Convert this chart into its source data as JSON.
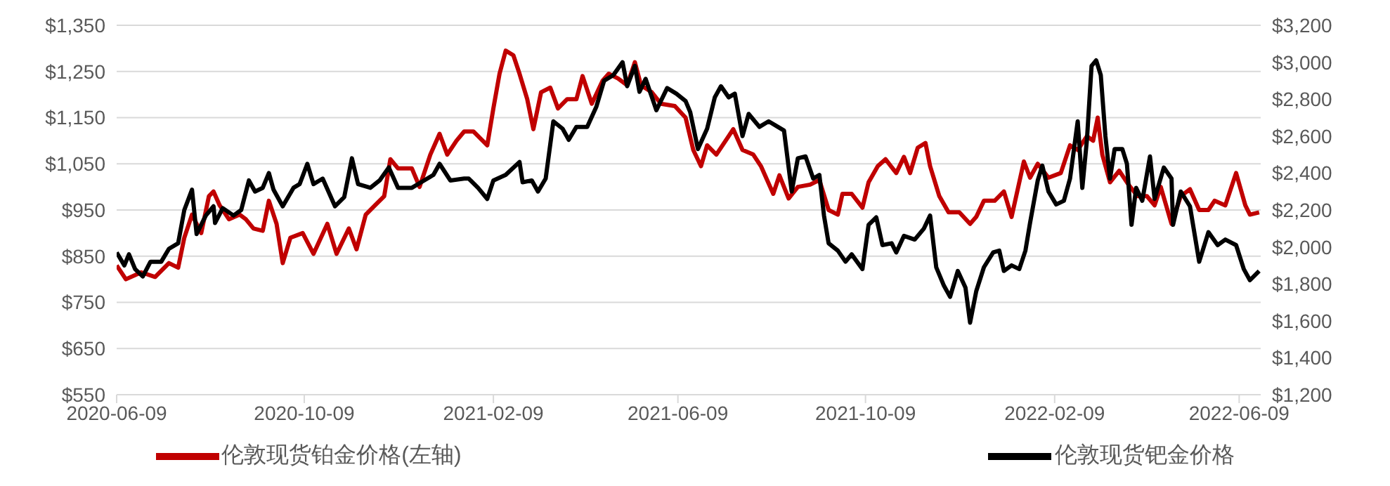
{
  "chart_data": {
    "type": "line",
    "xlim": [
      "2020-06-09",
      "2022-06-23"
    ],
    "xticks": [
      "2020-06-09",
      "2020-10-09",
      "2021-02-09",
      "2021-06-09",
      "2021-10-09",
      "2022-02-09",
      "2022-06-09"
    ],
    "ylim": [
      550,
      1350
    ],
    "yticks": [
      {
        "value": 550,
        "label": "$550"
      },
      {
        "value": 650,
        "label": "$650"
      },
      {
        "value": 750,
        "label": "$750"
      },
      {
        "value": 850,
        "label": "$850"
      },
      {
        "value": 950,
        "label": "$950"
      },
      {
        "value": 1050,
        "label": "$1,050"
      },
      {
        "value": 1150,
        "label": "$1,150"
      },
      {
        "value": 1250,
        "label": "$1,250"
      },
      {
        "value": 1350,
        "label": "$1,350"
      }
    ],
    "y2lim": [
      1200,
      3200
    ],
    "y2ticks": [
      {
        "value": 1200,
        "label": "$1,200"
      },
      {
        "value": 1400,
        "label": "$1,400"
      },
      {
        "value": 1600,
        "label": "$1,600"
      },
      {
        "value": 1800,
        "label": "$1,800"
      },
      {
        "value": 2000,
        "label": "$2,000"
      },
      {
        "value": 2200,
        "label": "$2,200"
      },
      {
        "value": 2400,
        "label": "$2,400"
      },
      {
        "value": 2600,
        "label": "$2,600"
      },
      {
        "value": 2800,
        "label": "$2,800"
      },
      {
        "value": 3000,
        "label": "$3,000"
      },
      {
        "value": 3200,
        "label": "$3,200"
      }
    ],
    "grid": "y",
    "legend": "bottom",
    "marker": "none",
    "line_style": "solid",
    "series": [
      {
        "name": "伦敦现货铂金价格(左轴)",
        "color": "#c00000",
        "x": [
          "2020-06-09",
          "2020-06-15",
          "2020-06-25",
          "2020-07-04",
          "2020-07-13",
          "2020-07-19",
          "2020-07-23",
          "2020-07-28",
          "2020-08-03",
          "2020-08-08",
          "2020-08-11",
          "2020-08-15",
          "2020-08-21",
          "2020-08-28",
          "2020-09-01",
          "2020-09-06",
          "2020-09-12",
          "2020-09-16",
          "2020-09-21",
          "2020-09-25",
          "2020-09-30",
          "2020-10-08",
          "2020-10-15",
          "2020-10-24",
          "2020-10-30",
          "2020-11-07",
          "2020-11-12",
          "2020-11-18",
          "2020-11-24",
          "2020-11-30",
          "2020-12-04",
          "2020-12-09",
          "2020-12-18",
          "2020-12-23",
          "2020-12-30",
          "2021-01-05",
          "2021-01-10",
          "2021-01-16",
          "2021-01-21",
          "2021-01-27",
          "2021-02-05",
          "2021-02-09",
          "2021-02-13",
          "2021-02-17",
          "2021-02-22",
          "2021-02-26",
          "2021-03-03",
          "2021-03-07",
          "2021-03-12",
          "2021-03-18",
          "2021-03-23",
          "2021-03-29",
          "2021-04-04",
          "2021-04-08",
          "2021-04-14",
          "2021-04-21",
          "2021-04-25",
          "2021-05-01",
          "2021-05-07",
          "2021-05-12",
          "2021-05-16",
          "2021-05-23",
          "2021-05-29",
          "2021-06-07",
          "2021-06-14",
          "2021-06-19",
          "2021-06-24",
          "2021-06-28",
          "2021-07-04",
          "2021-07-12",
          "2021-07-15",
          "2021-07-21",
          "2021-07-28",
          "2021-08-02",
          "2021-08-10",
          "2021-08-14",
          "2021-08-20",
          "2021-08-26",
          "2021-09-03",
          "2021-09-09",
          "2021-09-15",
          "2021-09-21",
          "2021-09-24",
          "2021-09-30",
          "2021-10-07",
          "2021-10-11",
          "2021-10-17",
          "2021-10-22",
          "2021-10-29",
          "2021-11-03",
          "2021-11-07",
          "2021-11-12",
          "2021-11-17",
          "2021-11-20",
          "2021-11-26",
          "2021-12-02",
          "2021-12-09",
          "2021-12-16",
          "2021-12-20",
          "2021-12-25",
          "2022-01-01",
          "2022-01-07",
          "2022-01-12",
          "2022-01-20",
          "2022-01-24",
          "2022-01-29",
          "2022-02-05",
          "2022-02-13",
          "2022-02-19",
          "2022-02-24",
          "2022-03-02",
          "2022-03-06",
          "2022-03-09",
          "2022-03-12",
          "2022-03-17",
          "2022-03-23",
          "2022-03-29",
          "2022-04-04",
          "2022-04-10",
          "2022-04-15",
          "2022-04-19",
          "2022-04-26",
          "2022-05-02",
          "2022-05-08",
          "2022-05-14",
          "2022-05-20",
          "2022-05-24",
          "2022-05-31",
          "2022-06-07",
          "2022-06-13",
          "2022-06-16",
          "2022-06-22"
        ],
        "values": [
          830,
          800,
          815,
          805,
          835,
          825,
          890,
          940,
          900,
          980,
          990,
          960,
          930,
          940,
          930,
          910,
          905,
          970,
          920,
          835,
          890,
          900,
          855,
          920,
          855,
          910,
          865,
          940,
          960,
          980,
          1060,
          1040,
          1040,
          1000,
          1070,
          1115,
          1070,
          1100,
          1120,
          1120,
          1090,
          1170,
          1245,
          1295,
          1285,
          1245,
          1190,
          1125,
          1205,
          1215,
          1170,
          1190,
          1190,
          1240,
          1180,
          1230,
          1245,
          1235,
          1220,
          1270,
          1220,
          1205,
          1180,
          1175,
          1150,
          1080,
          1045,
          1090,
          1070,
          1110,
          1125,
          1080,
          1070,
          1045,
          985,
          1025,
          975,
          1000,
          1005,
          1015,
          950,
          940,
          985,
          985,
          955,
          1010,
          1045,
          1060,
          1030,
          1065,
          1030,
          1085,
          1095,
          1045,
          980,
          945,
          945,
          920,
          935,
          970,
          970,
          990,
          935,
          1055,
          1020,
          1050,
          1020,
          1030,
          1090,
          1080,
          1110,
          1100,
          1150,
          1070,
          1010,
          1035,
          1005,
          980,
          980,
          960,
          1000,
          920,
          980,
          995,
          950,
          950,
          970,
          960,
          1030,
          960,
          940,
          945
        ]
      },
      {
        "name": "伦敦现货钯金价格",
        "color": "#000000",
        "axis": "y2",
        "x": [
          "2020-06-09",
          "2020-06-14",
          "2020-06-17",
          "2020-06-21",
          "2020-06-26",
          "2020-07-01",
          "2020-07-08",
          "2020-07-13",
          "2020-07-19",
          "2020-07-23",
          "2020-07-28",
          "2020-07-31",
          "2020-08-06",
          "2020-08-11",
          "2020-08-12",
          "2020-08-17",
          "2020-08-24",
          "2020-08-29",
          "2020-09-03",
          "2020-09-07",
          "2020-09-12",
          "2020-09-16",
          "2020-09-19",
          "2020-09-25",
          "2020-10-02",
          "2020-10-06",
          "2020-10-11",
          "2020-10-15",
          "2020-10-21",
          "2020-10-29",
          "2020-11-04",
          "2020-11-09",
          "2020-11-13",
          "2020-11-21",
          "2020-11-27",
          "2020-12-03",
          "2020-12-09",
          "2020-12-18",
          "2020-12-24",
          "2021-01-01",
          "2021-01-05",
          "2021-01-12",
          "2021-01-21",
          "2021-01-24",
          "2021-01-30",
          "2021-02-05",
          "2021-02-09",
          "2021-02-17",
          "2021-02-26",
          "2021-02-28",
          "2021-03-06",
          "2021-03-10",
          "2021-03-15",
          "2021-03-20",
          "2021-03-26",
          "2021-03-30",
          "2021-04-04",
          "2021-04-11",
          "2021-04-17",
          "2021-04-22",
          "2021-04-28",
          "2021-05-04",
          "2021-05-07",
          "2021-05-12",
          "2021-05-15",
          "2021-05-19",
          "2021-05-26",
          "2021-06-02",
          "2021-06-08",
          "2021-06-14",
          "2021-06-17",
          "2021-06-22",
          "2021-06-28",
          "2021-07-03",
          "2021-07-07",
          "2021-07-12",
          "2021-07-16",
          "2021-07-21",
          "2021-07-25",
          "2021-08-01",
          "2021-08-07",
          "2021-08-13",
          "2021-08-17",
          "2021-08-22",
          "2021-08-26",
          "2021-08-31",
          "2021-09-05",
          "2021-09-09",
          "2021-09-12",
          "2021-09-15",
          "2021-09-21",
          "2021-09-26",
          "2021-09-30",
          "2021-10-07",
          "2021-10-11",
          "2021-10-16",
          "2021-10-20",
          "2021-10-26",
          "2021-10-29",
          "2021-11-03",
          "2021-11-10",
          "2021-11-16",
          "2021-11-20",
          "2021-11-24",
          "2021-11-29",
          "2021-12-03",
          "2021-12-08",
          "2021-12-13",
          "2021-12-16",
          "2021-12-20",
          "2021-12-25",
          "2021-12-31",
          "2022-01-04",
          "2022-01-07",
          "2022-01-12",
          "2022-01-17",
          "2022-01-21",
          "2022-01-24",
          "2022-01-29",
          "2022-02-01",
          "2022-02-05",
          "2022-02-10",
          "2022-02-15",
          "2022-02-19",
          "2022-02-24",
          "2022-02-27",
          "2022-03-02",
          "2022-03-05",
          "2022-03-08",
          "2022-03-11",
          "2022-03-14",
          "2022-03-17",
          "2022-03-20",
          "2022-03-25",
          "2022-03-28",
          "2022-03-31",
          "2022-04-03",
          "2022-04-07",
          "2022-04-12",
          "2022-04-15",
          "2022-04-21",
          "2022-04-26",
          "2022-04-27",
          "2022-05-02",
          "2022-05-08",
          "2022-05-14",
          "2022-05-20",
          "2022-05-26",
          "2022-05-31",
          "2022-06-07",
          "2022-06-12",
          "2022-06-16",
          "2022-06-22"
        ],
        "values": [
          1970,
          1900,
          1960,
          1880,
          1840,
          1920,
          1920,
          1990,
          2020,
          2200,
          2310,
          2070,
          2170,
          2220,
          2130,
          2210,
          2170,
          2200,
          2360,
          2300,
          2320,
          2400,
          2310,
          2220,
          2320,
          2340,
          2450,
          2340,
          2370,
          2220,
          2270,
          2480,
          2340,
          2320,
          2360,
          2430,
          2320,
          2320,
          2350,
          2390,
          2450,
          2360,
          2370,
          2370,
          2320,
          2260,
          2360,
          2390,
          2460,
          2350,
          2360,
          2300,
          2370,
          2680,
          2640,
          2580,
          2650,
          2650,
          2760,
          2900,
          2930,
          3000,
          2870,
          2980,
          2840,
          2910,
          2740,
          2860,
          2830,
          2790,
          2730,
          2530,
          2640,
          2810,
          2870,
          2810,
          2830,
          2600,
          2720,
          2650,
          2680,
          2650,
          2630,
          2300,
          2480,
          2490,
          2370,
          2390,
          2170,
          2020,
          1980,
          1920,
          1960,
          1880,
          2120,
          2160,
          2010,
          2020,
          1970,
          2060,
          2040,
          2100,
          2170,
          1890,
          1790,
          1730,
          1870,
          1780,
          1590,
          1760,
          1890,
          1970,
          1980,
          1870,
          1900,
          1880,
          1980,
          2130,
          2360,
          2440,
          2300,
          2230,
          2250,
          2370,
          2680,
          2320,
          2580,
          2980,
          3010,
          2930,
          2600,
          2370,
          2530,
          2530,
          2450,
          2120,
          2320,
          2250,
          2490,
          2260,
          2430,
          2370,
          2120,
          2300,
          2220,
          1920,
          2080,
          2010,
          2040,
          2010,
          1880,
          1820,
          1870
        ]
      }
    ]
  }
}
